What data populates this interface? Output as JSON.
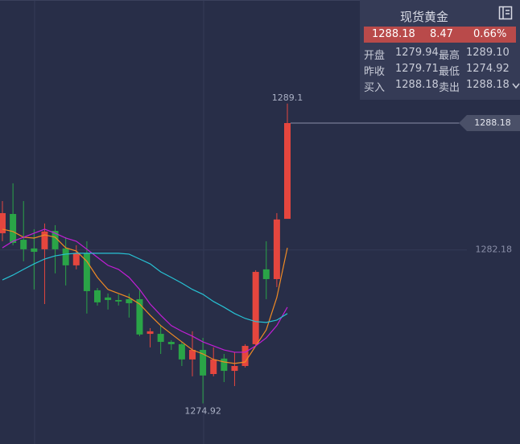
{
  "panel": {
    "title": "现货黄金",
    "price": "1288.18",
    "change": "8.47",
    "change_pct": "0.66%",
    "rows": [
      [
        "开盘",
        "1279.94",
        "最高",
        "1289.10"
      ],
      [
        "昨收",
        "1279.71",
        "最低",
        "1274.92"
      ],
      [
        "买入",
        "1288.18",
        "卖出",
        "1288.18"
      ]
    ]
  },
  "chart_data": {
    "type": "candlestick",
    "ylim": [
      1273,
      1294
    ],
    "yticks": [
      1282.18
    ],
    "grid": true,
    "up_color": "#e5463e",
    "down_color": "#2aa447",
    "open": [
      1282.97,
      1283.88,
      1282.66,
      1282.25,
      1282.21,
      1283.08,
      1282.25,
      1281.45,
      1282.02,
      1280.27,
      1279.93,
      1279.81,
      1279.85,
      1279.85,
      1278.21,
      1278.21,
      1277.83,
      1277.72,
      1277.0,
      1277.45,
      1276.31,
      1277.04,
      1276.46,
      1276.69,
      1277.72,
      1281.26,
      1280.8,
      1283.65
    ],
    "high": [
      1284.49,
      1285.33,
      1284.49,
      1283.16,
      1283.43,
      1283.35,
      1282.78,
      1282.4,
      1282.59,
      1280.38,
      1280.12,
      1280.08,
      1280.12,
      1280.31,
      1278.48,
      1278.6,
      1277.91,
      1277.83,
      1278.33,
      1278.02,
      1277.57,
      1277.26,
      1277.34,
      1277.72,
      1281.22,
      1282.59,
      1283.92,
      1289.1
    ],
    "low": [
      1282.59,
      1282.4,
      1281.64,
      1280.31,
      1279.62,
      1281.07,
      1280.5,
      1281.26,
      1279.17,
      1279.55,
      1279.36,
      1279.55,
      1278.98,
      1278.1,
      1277.57,
      1277.26,
      1277.45,
      1276.69,
      1276.2,
      1274.92,
      1276.2,
      1275.93,
      1275.74,
      1276.62,
      1277.64,
      1279.85,
      1280.42,
      1283.65
    ],
    "close": [
      1283.92,
      1282.51,
      1282.21,
      1282.09,
      1283.05,
      1282.21,
      1281.45,
      1282.02,
      1280.23,
      1279.7,
      1279.81,
      1279.74,
      1279.66,
      1278.18,
      1278.33,
      1277.83,
      1277.72,
      1277.0,
      1277.45,
      1276.24,
      1277.0,
      1276.46,
      1276.69,
      1277.64,
      1281.14,
      1280.8,
      1283.62,
      1288.18
    ],
    "ma_lines": [
      {
        "color": "#f08a24",
        "values": [
          1283.16,
          1283.05,
          1282.78,
          1282.74,
          1282.89,
          1282.78,
          1282.28,
          1282.13,
          1281.64,
          1280.88,
          1280.31,
          1280.12,
          1279.93,
          1279.62,
          1279.09,
          1278.6,
          1278.21,
          1277.83,
          1277.45,
          1277.26,
          1277.0,
          1276.88,
          1276.81,
          1276.88,
          1277.64,
          1278.4,
          1279.93,
          1282.28
        ]
      },
      {
        "color": "#c21ed6",
        "values": [
          1282.28,
          1282.59,
          1282.78,
          1282.97,
          1283.16,
          1282.97,
          1282.74,
          1282.59,
          1282.21,
          1281.83,
          1281.45,
          1281.26,
          1280.88,
          1280.31,
          1279.62,
          1279.09,
          1278.6,
          1278.33,
          1278.1,
          1277.83,
          1277.64,
          1277.45,
          1277.34,
          1277.34,
          1277.64,
          1278.02,
          1278.6,
          1279.47
        ]
      },
      {
        "color": "#27c2d4",
        "values": [
          1280.76,
          1280.99,
          1281.26,
          1281.52,
          1281.75,
          1281.9,
          1281.98,
          1282.02,
          1282.02,
          1282.02,
          1282.02,
          1282.02,
          1281.98,
          1281.75,
          1281.52,
          1281.14,
          1280.88,
          1280.61,
          1280.31,
          1280.08,
          1279.74,
          1279.47,
          1279.17,
          1278.94,
          1278.79,
          1278.75,
          1278.86,
          1279.17
        ]
      }
    ],
    "high_label": 1289.1,
    "low_label": 1274.92,
    "last_price": 1288.18
  }
}
